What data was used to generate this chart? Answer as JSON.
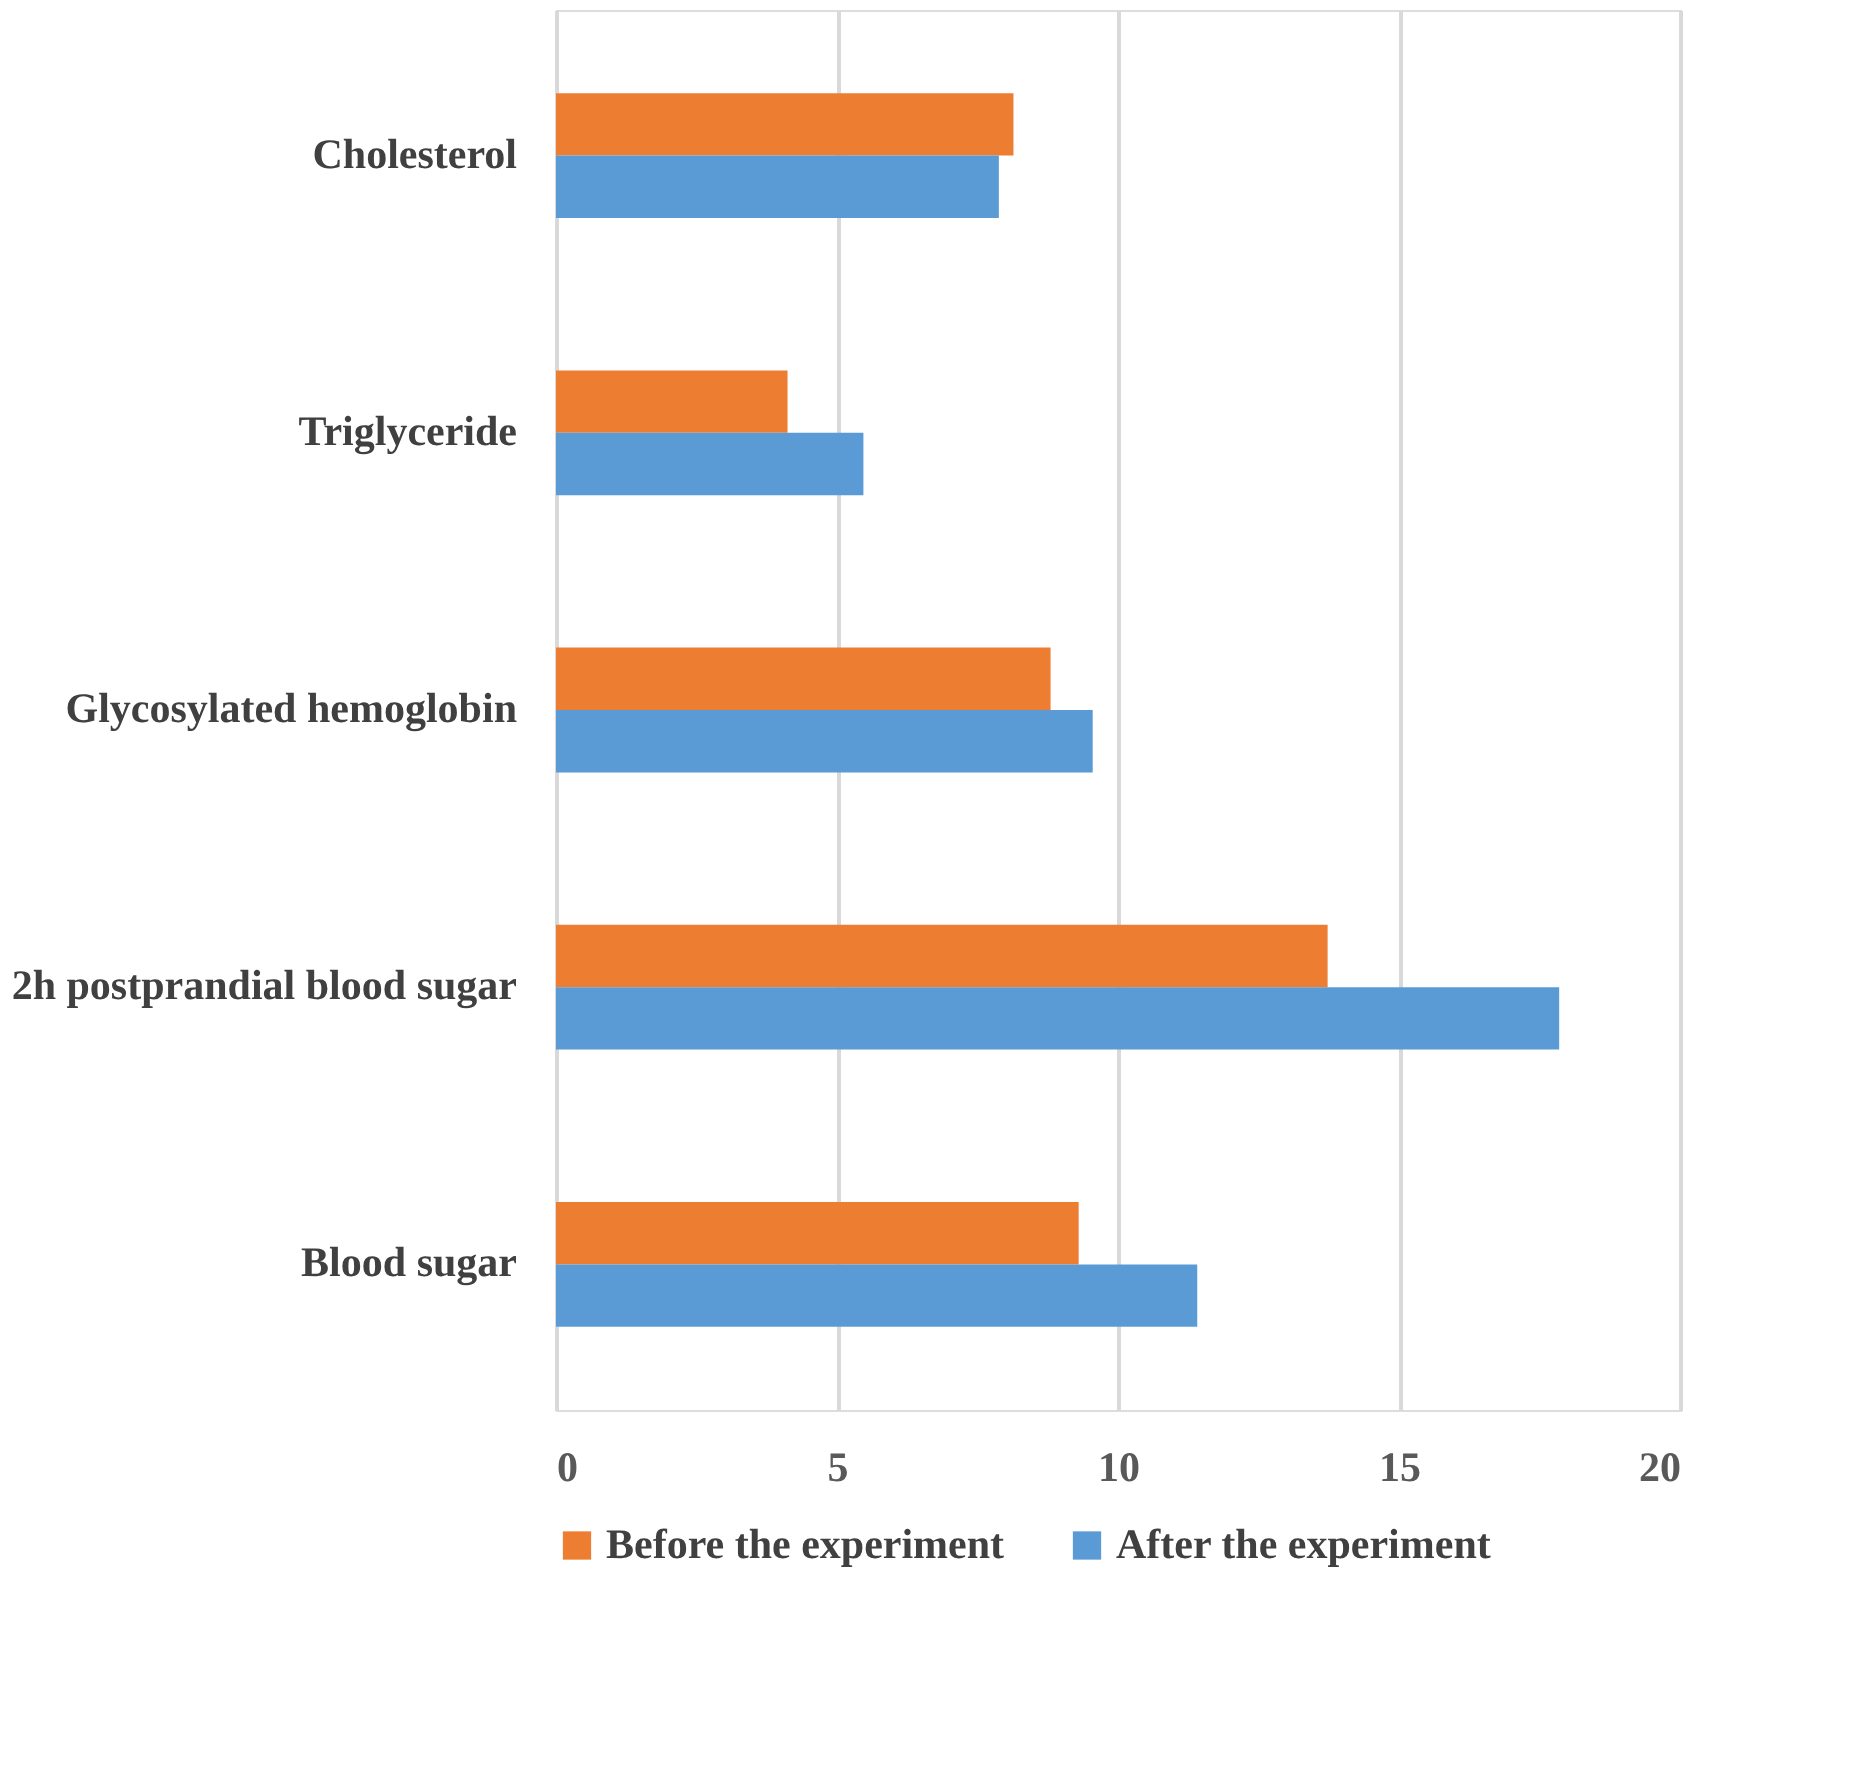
{
  "chart_data": {
    "type": "bar",
    "orientation": "horizontal",
    "categories": [
      "Cholesterol",
      "Triglyceride",
      "Glycosylated hemoglobin",
      "2h postprandial blood sugar",
      "Blood sugar"
    ],
    "series": [
      {
        "name": "Before the experiment",
        "color": "#ed7d31",
        "values": [
          8.14,
          4.12,
          8.8,
          13.73,
          9.3
        ]
      },
      {
        "name": "After the experiment",
        "color": "#5b9bd5",
        "values": [
          7.88,
          5.47,
          9.55,
          17.85,
          11.41
        ]
      }
    ],
    "xlim": [
      0,
      20
    ],
    "xticks": [
      0,
      5,
      10,
      15,
      20
    ],
    "grid": "x",
    "legend": "bottom"
  }
}
